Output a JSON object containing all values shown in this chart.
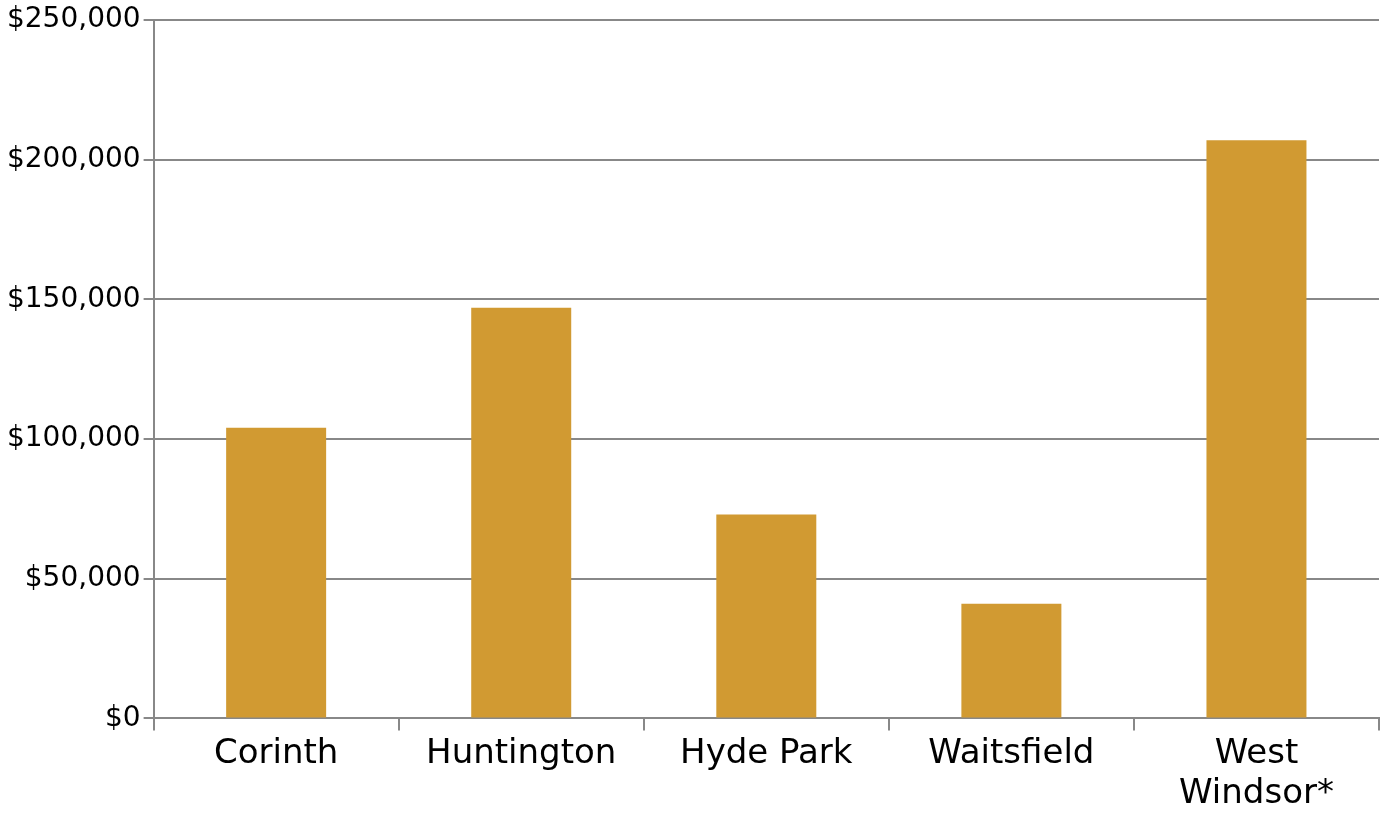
{
  "chart_data": {
    "type": "bar",
    "categories": [
      "Corinth",
      "Huntington",
      "Hyde Park",
      "Waitsfield",
      "West Windsor*"
    ],
    "values": [
      104000,
      147000,
      73000,
      41000,
      207000
    ],
    "color": "#d19a32",
    "ylim": [
      0,
      250000
    ],
    "yticks": [
      {
        "value": 0,
        "label": "$0"
      },
      {
        "value": 50000,
        "label": "$50,000"
      },
      {
        "value": 100000,
        "label": "$100,000"
      },
      {
        "value": 150000,
        "label": "$150,000"
      },
      {
        "value": 200000,
        "label": "$200,000"
      },
      {
        "value": 250000,
        "label": "$250,000"
      }
    ],
    "grid": "y",
    "legend": false
  }
}
